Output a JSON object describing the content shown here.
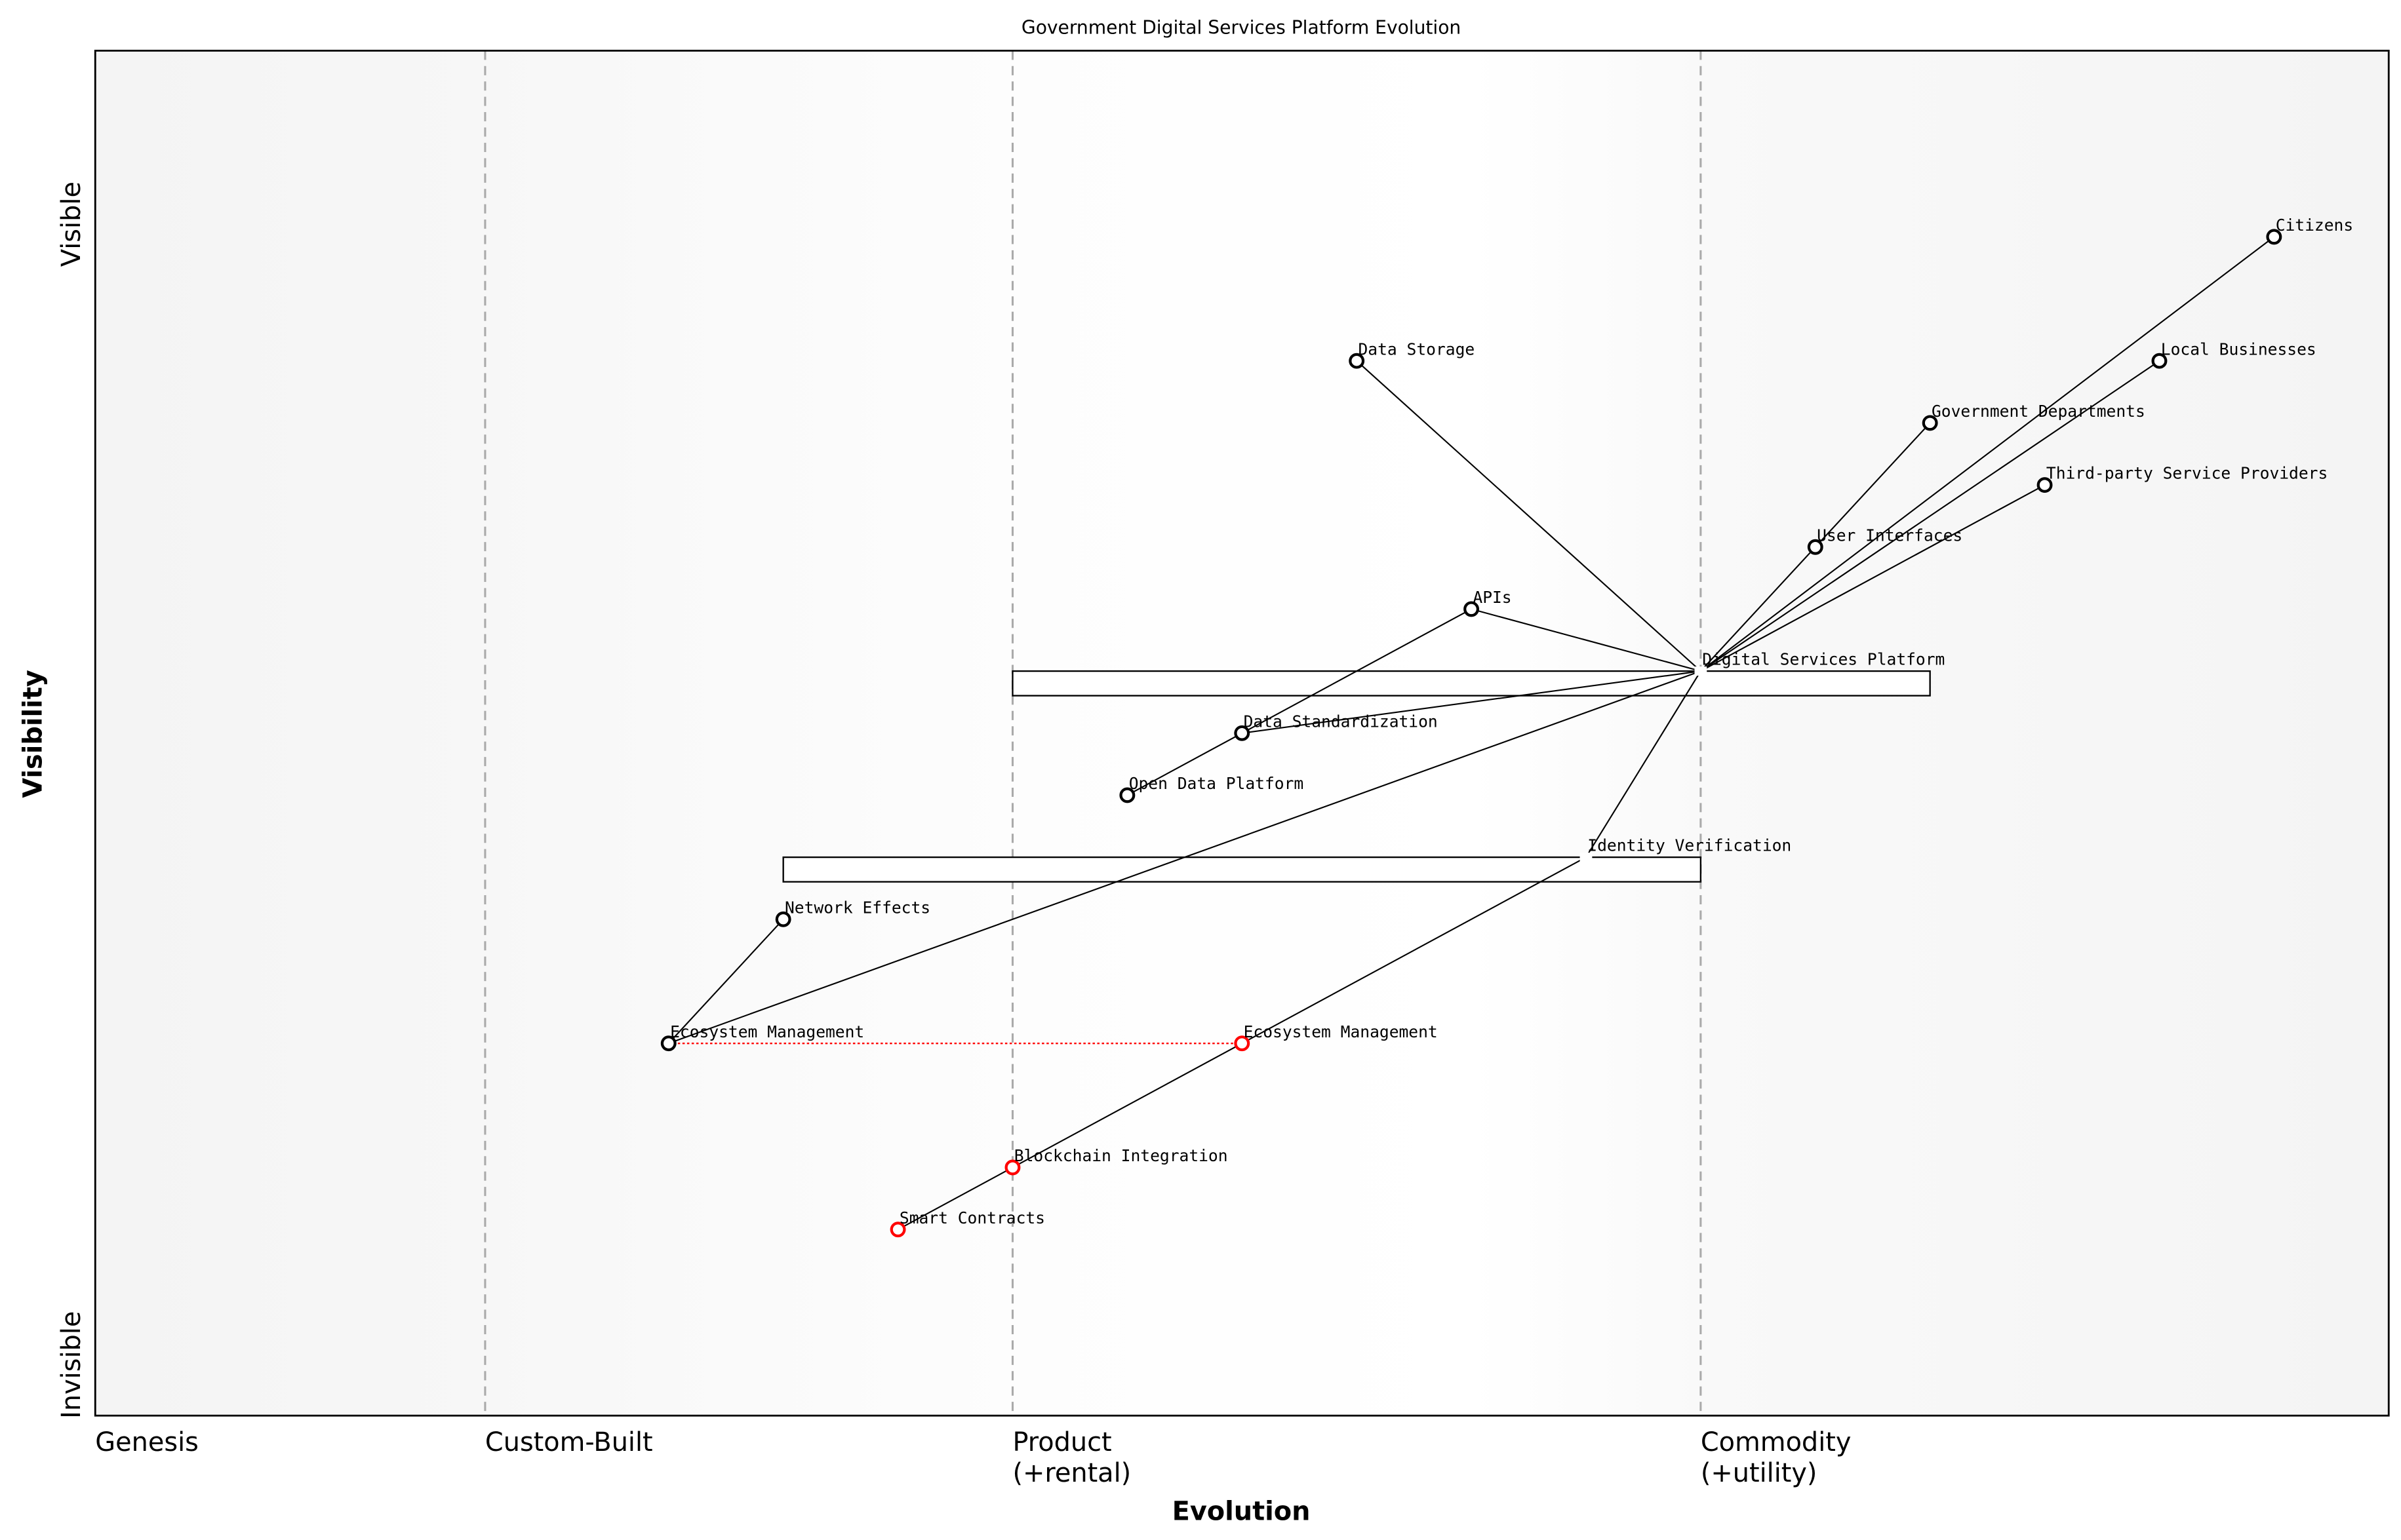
{
  "title": "Government Digital Services Platform Evolution",
  "x_axis": {
    "label": "Evolution",
    "range": [
      0,
      1
    ],
    "stages": [
      {
        "label": "Genesis",
        "at": 0
      },
      {
        "label": "Custom-Built",
        "at": 0.17
      },
      {
        "label": "Product",
        "sub": "(+rental)",
        "at": 0.4
      },
      {
        "label": "Commodity",
        "sub": "(+utility)",
        "at": 0.7
      }
    ]
  },
  "y_axis": {
    "label": "Visibility",
    "range": [
      0,
      1.1
    ],
    "top_label": "Visible",
    "bottom_label": "Invisible"
  },
  "components": [
    {
      "id": "citizens",
      "name": "Citizens",
      "evolution": 0.95,
      "visibility": 0.95
    },
    {
      "id": "local",
      "name": "Local Businesses",
      "evolution": 0.9,
      "visibility": 0.85
    },
    {
      "id": "gov",
      "name": "Government Departments",
      "evolution": 0.8,
      "visibility": 0.8
    },
    {
      "id": "third",
      "name": "Third-party Service Providers",
      "evolution": 0.85,
      "visibility": 0.75
    },
    {
      "id": "ui",
      "name": "User Interfaces",
      "evolution": 0.75,
      "visibility": 0.7
    },
    {
      "id": "storage",
      "name": "Data Storage",
      "evolution": 0.55,
      "visibility": 0.85
    },
    {
      "id": "apis",
      "name": "APIs",
      "evolution": 0.6,
      "visibility": 0.65
    },
    {
      "id": "dsp",
      "name": "Digital Services Platform",
      "evolution": 0.7,
      "visibility": 0.6,
      "hidden_marker": true
    },
    {
      "id": "datastd",
      "name": "Data Standardization",
      "evolution": 0.5,
      "visibility": 0.55
    },
    {
      "id": "opendata",
      "name": "Open Data Platform",
      "evolution": 0.45,
      "visibility": 0.5
    },
    {
      "id": "identity",
      "name": "Identity Verification",
      "evolution": 0.65,
      "visibility": 0.45,
      "hidden_marker": true
    },
    {
      "id": "network",
      "name": "Network Effects",
      "evolution": 0.3,
      "visibility": 0.4
    },
    {
      "id": "eco",
      "name": "Ecosystem Management",
      "evolution": 0.25,
      "visibility": 0.3
    },
    {
      "id": "eco2",
      "name": "Ecosystem Management",
      "evolution": 0.5,
      "visibility": 0.3,
      "color": "#ff0000"
    },
    {
      "id": "blockchain",
      "name": "Blockchain Integration",
      "evolution": 0.4,
      "visibility": 0.2,
      "color": "#ff0000"
    },
    {
      "id": "smart",
      "name": "Smart Contracts",
      "evolution": 0.35,
      "visibility": 0.15,
      "color": "#ff0000"
    }
  ],
  "links": [
    [
      "citizens",
      "dsp"
    ],
    [
      "local",
      "dsp"
    ],
    [
      "gov",
      "ui"
    ],
    [
      "ui",
      "dsp"
    ],
    [
      "third",
      "dsp"
    ],
    [
      "storage",
      "dsp"
    ],
    [
      "apis",
      "dsp"
    ],
    [
      "apis",
      "datastd"
    ],
    [
      "datastd",
      "opendata"
    ],
    [
      "datastd",
      "dsp"
    ],
    [
      "eco",
      "dsp"
    ],
    [
      "eco",
      "network"
    ],
    [
      "identity",
      "dsp"
    ],
    [
      "identity",
      "eco2"
    ],
    [
      "eco2",
      "blockchain"
    ],
    [
      "blockchain",
      "smart"
    ]
  ],
  "evolution_arrows": [
    {
      "from": "eco",
      "to": "eco2",
      "color": "#ff0000",
      "style": "dotted"
    }
  ],
  "inertia": [
    {
      "component": "dsp",
      "from_evolution": 0.4,
      "to_evolution": 0.8
    },
    {
      "component": "identity",
      "from_evolution": 0.3,
      "to_evolution": 0.7
    }
  ],
  "colors": {
    "component": "#000000",
    "evolved": "#ff0000",
    "stage_line": "#aaaaaa"
  }
}
